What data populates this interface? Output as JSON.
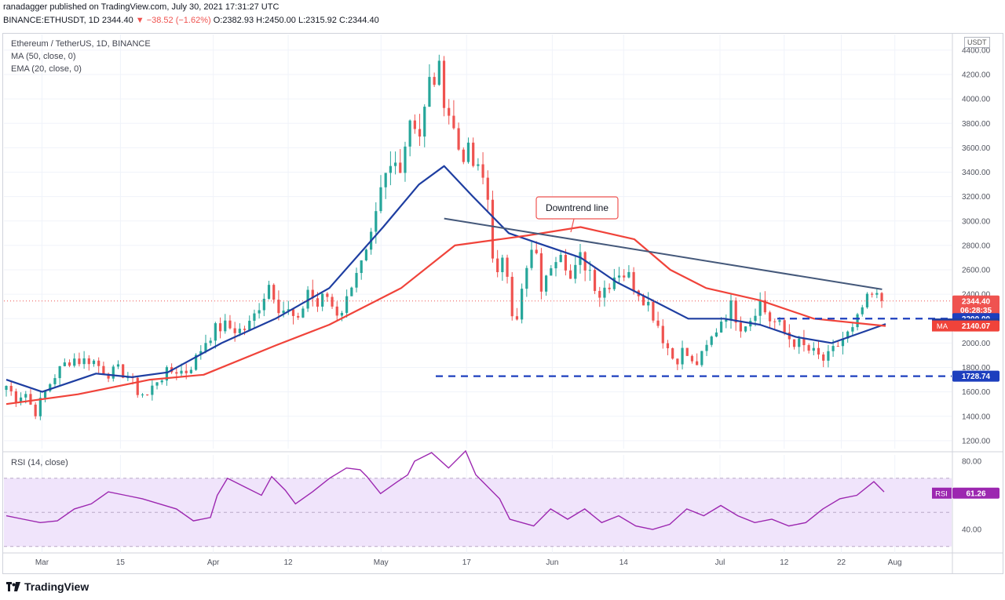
{
  "header": {
    "line1": "ranadagger published on TradingView.com, July 30, 2021 17:31:27 UTC",
    "symbol": "BINANCE:ETHUSDT, 1D",
    "last": "2344.40",
    "change": "▼ −38.52 (−1.62%)",
    "ohlc": "O:2382.93 H:2450.00 L:2315.92 C:2344.40"
  },
  "legend": {
    "title": "Ethereum / TetherUS, 1D, BINANCE",
    "ma": "MA (50, close, 0)",
    "ema": "EMA (20, close, 0)",
    "rsi": "RSI (14, close)"
  },
  "price_axis_unit": "USDT",
  "annotation": {
    "text": "Downtrend line"
  },
  "footer": {
    "brand": "TradingView"
  },
  "colors": {
    "up": "#26a69a",
    "down": "#ef5350",
    "ema": "#1e3ea1",
    "ma": "#f0433a",
    "trendline": "#44587a",
    "support": "#1d3fbe",
    "rsi": "#9c27b0",
    "rsi_band": "#f0e4fb",
    "last_price": "#ef5350"
  },
  "chart_data": [
    {
      "type": "candlestick",
      "title": "Ethereum / TetherUS, 1D, BINANCE",
      "x_ticks": [
        "Mar",
        "15",
        "Apr",
        "12",
        "May",
        "17",
        "Jun",
        "14",
        "Jul",
        "12",
        "22",
        "Aug"
      ],
      "y_ticks": [
        1200,
        1400,
        1600,
        1800,
        2000,
        2200,
        2400,
        2600,
        2800,
        3000,
        3200,
        3400,
        3600,
        3800,
        4000,
        4200,
        4400
      ],
      "ylim": [
        1150,
        4450
      ],
      "grid": true,
      "anchors": [
        [
          1650,
          1550,
          1600,
          1420,
          1580,
          1720,
          1810,
          1880,
          1850,
          1870,
          1800,
          1750,
          1780,
          1720,
          1600,
          1570,
          1700,
          1750,
          1780
        ],
        [
          1760,
          1850,
          2000,
          2100,
          2140,
          2120,
          2100,
          2160,
          2340,
          2500,
          2300,
          2250,
          2150,
          2450,
          2300,
          2400,
          2250
        ],
        [
          2300,
          2600,
          2650,
          2900,
          3300,
          3450,
          3500,
          3900,
          3700,
          4150,
          4200,
          3900,
          3600,
          3550,
          3400,
          3300
        ],
        [
          2500,
          2700,
          2150,
          2500,
          2800,
          2400,
          2700,
          2800,
          2500,
          2700,
          2600,
          2400,
          2500
        ],
        [
          2600,
          2550,
          2450,
          2350,
          2200,
          2000,
          1850,
          1950,
          1800,
          1900,
          2050,
          2200,
          2300
        ],
        [
          2150,
          2200,
          2350,
          2200,
          2150,
          2050,
          2000,
          1950,
          1900,
          1850,
          1950,
          2050,
          2100,
          2300,
          2380,
          2344
        ]
      ],
      "candles_count": 181,
      "last_close": 2344.4,
      "moving_averages": [
        {
          "name": "EMA",
          "last": 2156.13,
          "points": [
            [
              0,
              1700
            ],
            [
              10,
              1600
            ],
            [
              25,
              1750
            ],
            [
              35,
              1720
            ],
            [
              45,
              1760
            ],
            [
              60,
              2000
            ],
            [
              75,
              2200
            ],
            [
              90,
              2450
            ],
            [
              105,
              2950
            ],
            [
              115,
              3300
            ],
            [
              122,
              3450
            ],
            [
              130,
              3200
            ],
            [
              140,
              2900
            ],
            [
              150,
              2800
            ],
            [
              160,
              2700
            ],
            [
              170,
              2500
            ],
            [
              180,
              2350
            ],
            [
              190,
              2200
            ],
            [
              200,
              2200
            ],
            [
              210,
              2150
            ],
            [
              220,
              2050
            ],
            [
              230,
              2000
            ],
            [
              245,
              2156
            ]
          ]
        },
        {
          "name": "MA",
          "last": 2140.07,
          "points": [
            [
              0,
              1500
            ],
            [
              20,
              1580
            ],
            [
              40,
              1700
            ],
            [
              55,
              1740
            ],
            [
              75,
              1980
            ],
            [
              90,
              2150
            ],
            [
              110,
              2450
            ],
            [
              125,
              2800
            ],
            [
              145,
              2880
            ],
            [
              160,
              2950
            ],
            [
              175,
              2850
            ],
            [
              185,
              2600
            ],
            [
              195,
              2450
            ],
            [
              210,
              2350
            ],
            [
              225,
              2200
            ],
            [
              245,
              2140
            ]
          ]
        }
      ],
      "trendline": {
        "from": [
          122,
          3020
        ],
        "to": [
          244,
          2440
        ]
      },
      "horizontal_levels": [
        {
          "label": "2200.00",
          "value": 2200
        },
        {
          "label": "1728.74",
          "value": 1728.74
        }
      ],
      "price_tags": [
        {
          "label": "2344.40",
          "value": 2344.4,
          "color": "#ef5350"
        },
        {
          "label": "06:28:35",
          "value": 2270,
          "color": "#ef5350"
        },
        {
          "label": "2200.00",
          "value": 2200,
          "color": "#1d3fbe"
        },
        {
          "label": "2156.13",
          "name": "EMA",
          "value": 2156.13,
          "color": "#1e3ea1"
        },
        {
          "label": "2140.07",
          "name": "MA",
          "value": 2140.07,
          "color": "#f0433a"
        },
        {
          "label": "1728.74",
          "value": 1728.74,
          "color": "#1d3fbe"
        }
      ]
    },
    {
      "type": "line",
      "title": "RSI (14, close)",
      "y_ticks": [
        40,
        80
      ],
      "ylim": [
        28,
        90
      ],
      "band": [
        30,
        70
      ],
      "last": 61.26,
      "points": [
        [
          0,
          48
        ],
        [
          5,
          46
        ],
        [
          10,
          44
        ],
        [
          15,
          45
        ],
        [
          20,
          52
        ],
        [
          25,
          55
        ],
        [
          30,
          62
        ],
        [
          35,
          60
        ],
        [
          40,
          58
        ],
        [
          45,
          55
        ],
        [
          50,
          52
        ],
        [
          55,
          45
        ],
        [
          60,
          47
        ],
        [
          62,
          60
        ],
        [
          65,
          70
        ],
        [
          70,
          65
        ],
        [
          75,
          60
        ],
        [
          78,
          71
        ],
        [
          82,
          63
        ],
        [
          85,
          55
        ],
        [
          90,
          62
        ],
        [
          95,
          70
        ],
        [
          100,
          76
        ],
        [
          104,
          75
        ],
        [
          106,
          71
        ],
        [
          110,
          61
        ],
        [
          115,
          68
        ],
        [
          118,
          72
        ],
        [
          120,
          80
        ],
        [
          125,
          85
        ],
        [
          130,
          76
        ],
        [
          135,
          86
        ],
        [
          138,
          72
        ],
        [
          145,
          58
        ],
        [
          148,
          46
        ],
        [
          155,
          42
        ],
        [
          160,
          52
        ],
        [
          165,
          46
        ],
        [
          170,
          52
        ],
        [
          175,
          44
        ],
        [
          180,
          48
        ],
        [
          185,
          42
        ],
        [
          190,
          40
        ],
        [
          195,
          43
        ],
        [
          200,
          52
        ],
        [
          205,
          48
        ],
        [
          210,
          54
        ],
        [
          215,
          48
        ],
        [
          220,
          44
        ],
        [
          225,
          46
        ],
        [
          230,
          42
        ],
        [
          235,
          44
        ],
        [
          240,
          52
        ],
        [
          245,
          58
        ],
        [
          250,
          60
        ],
        [
          255,
          68
        ],
        [
          258,
          62
        ]
      ]
    }
  ]
}
